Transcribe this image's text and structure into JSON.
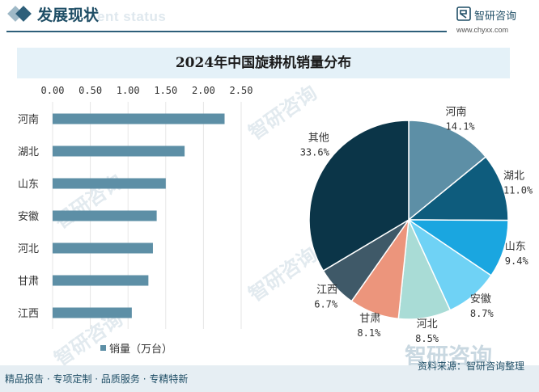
{
  "header": {
    "title": "发展现状",
    "ghost_text": "ent status"
  },
  "brand": {
    "name": "智研咨询",
    "url": "www.chyxx.com"
  },
  "chart_data": [
    {
      "type": "bar",
      "orientation": "horizontal",
      "title": "2024年中国旋耕机销量分布",
      "categories": [
        "河南",
        "湖北",
        "山东",
        "安徽",
        "河北",
        "甘肃",
        "江西"
      ],
      "series": [
        {
          "name": "销量（万台）",
          "values": [
            2.28,
            1.75,
            1.5,
            1.38,
            1.33,
            1.27,
            1.05
          ],
          "color": "#5d8fa6"
        }
      ],
      "xlim": [
        0,
        2.5
      ],
      "xticks": [
        "0.00",
        "0.50",
        "1.00",
        "1.50",
        "2.00",
        "2.50"
      ],
      "xtick_values": [
        0,
        0.5,
        1,
        1.5,
        2,
        2.5
      ],
      "legend_position": "bottom-left"
    },
    {
      "type": "pie",
      "slices": [
        {
          "name": "河南",
          "label": "14.1%",
          "value": 14.1,
          "color": "#5d8fa6"
        },
        {
          "name": "湖北",
          "label": "11.0%",
          "value": 11.0,
          "color": "#0e5c7d"
        },
        {
          "name": "山东",
          "label": "9.4%",
          "value": 9.4,
          "color": "#1aa6e0"
        },
        {
          "name": "安徽",
          "label": "8.7%",
          "value": 8.7,
          "color": "#6fd2f5"
        },
        {
          "name": "河北",
          "label": "8.5%",
          "value": 8.5,
          "color": "#a9dcd6"
        },
        {
          "name": "甘肃",
          "label": "8.1%",
          "value": 8.1,
          "color": "#ec957c"
        },
        {
          "name": "江西",
          "label": "6.7%",
          "value": 6.7,
          "color": "#3f5968"
        },
        {
          "name": "其他",
          "label": "33.6%",
          "value": 33.6,
          "color": "#0b3548"
        }
      ]
    }
  ],
  "footer": {
    "left_text": "精品报告 · 专项定制 · 品质服务 · 专精特新",
    "source": "资料来源：智研咨询整理",
    "watermark": "智研咨询"
  }
}
